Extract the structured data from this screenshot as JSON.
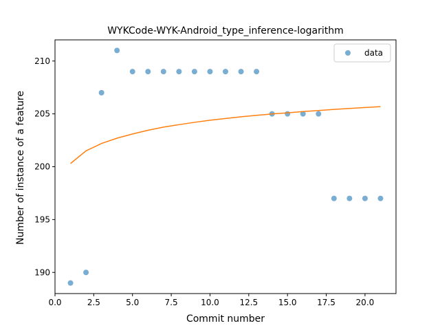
{
  "chart_data": {
    "type": "scatter",
    "title": "WYKCode-WYK-Android_type_inference-logarithm",
    "xlabel": "Commit number",
    "ylabel": "Number of instance of a feature",
    "xlim": [
      0.0,
      22.0
    ],
    "ylim": [
      188.0,
      212.0
    ],
    "x_ticks": [
      0.0,
      2.5,
      5.0,
      7.5,
      10.0,
      12.5,
      15.0,
      17.5,
      20.0
    ],
    "x_tick_labels": [
      "0.0",
      "2.5",
      "5.0",
      "7.5",
      "10.0",
      "12.5",
      "15.0",
      "17.5",
      "20.0"
    ],
    "y_ticks": [
      190,
      195,
      200,
      205,
      210
    ],
    "y_tick_labels": [
      "190",
      "195",
      "200",
      "205",
      "210"
    ],
    "grid": false,
    "legend_position": "top-right",
    "series": [
      {
        "name": "data",
        "kind": "scatter",
        "color": "#1f77b4",
        "x": [
          1,
          2,
          3,
          4,
          5,
          6,
          7,
          8,
          9,
          10,
          11,
          12,
          13,
          14,
          15,
          16,
          17,
          18,
          19,
          20,
          21
        ],
        "y": [
          189,
          190,
          207,
          211,
          209,
          209,
          209,
          209,
          209,
          209,
          209,
          209,
          209,
          205,
          205,
          205,
          205,
          197,
          197,
          197,
          197
        ]
      },
      {
        "kind": "line",
        "color": "#ff7f0e",
        "x": [
          1,
          2,
          3,
          4,
          5,
          6,
          7,
          8,
          9,
          10,
          11,
          12,
          13,
          14,
          15,
          16,
          17,
          18,
          19,
          20,
          21
        ],
        "y": [
          200.3,
          201.5,
          202.2,
          202.7,
          203.1,
          203.45,
          203.75,
          203.98,
          204.2,
          204.4,
          204.56,
          204.72,
          204.86,
          204.99,
          205.1,
          205.22,
          205.32,
          205.42,
          205.51,
          205.6,
          205.68
        ]
      }
    ]
  }
}
